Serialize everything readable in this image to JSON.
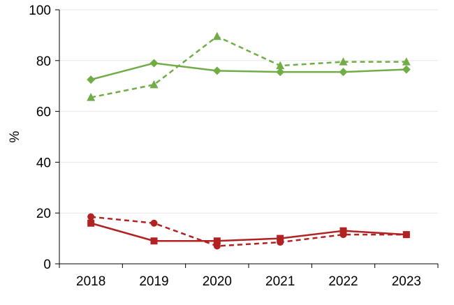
{
  "chart_data": {
    "type": "line",
    "title": "",
    "xlabel": "",
    "ylabel": "%",
    "ylim": [
      0,
      100
    ],
    "yticks": [
      0,
      20,
      40,
      60,
      80,
      100
    ],
    "grid": true,
    "categories": [
      "2018",
      "2019",
      "2020",
      "2021",
      "2022",
      "2023"
    ],
    "series": [
      {
        "values": [
          72.5,
          79,
          76,
          75.5,
          75.5,
          76.5
        ],
        "color": "#70AD47",
        "dash": "solid",
        "marker": "diamond"
      },
      {
        "values": [
          65.5,
          70.5,
          89.5,
          78,
          79.5,
          79.5
        ],
        "color": "#70AD47",
        "dash": "dashed",
        "marker": "triangle"
      },
      {
        "values": [
          16,
          9,
          9,
          10,
          13,
          11.5
        ],
        "color": "#B22222",
        "dash": "solid",
        "marker": "square"
      },
      {
        "values": [
          18.5,
          16,
          7,
          8.5,
          11.5,
          11.5
        ],
        "color": "#B22222",
        "dash": "dashed",
        "marker": "circle"
      }
    ]
  }
}
